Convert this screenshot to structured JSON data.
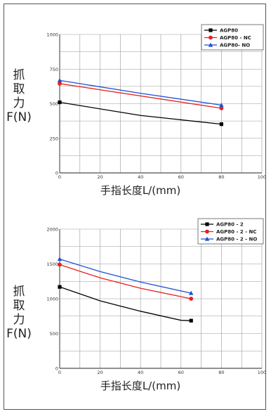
{
  "chart_data": [
    {
      "type": "line",
      "title": "",
      "xlabel": "手指长度L/(mm)",
      "ylabel_lines": [
        "抓",
        "取",
        "力",
        "F(N)"
      ],
      "xlim": [
        0,
        100
      ],
      "ylim": [
        0,
        1000
      ],
      "xticks": [
        "0",
        "20",
        "40",
        "60",
        "80",
        "100"
      ],
      "yticks": [
        "0",
        "250",
        "500",
        "750",
        "1000"
      ],
      "grid": true,
      "legend_position": "top-right",
      "series": [
        {
          "name": "AGP80",
          "color": "#000000",
          "marker": "square",
          "x": [
            0,
            40,
            80
          ],
          "y": [
            510,
            415,
            352
          ]
        },
        {
          "name": "AGP80 - NC",
          "color": "#e8201c",
          "marker": "circle",
          "x": [
            0,
            80
          ],
          "y": [
            645,
            467
          ]
        },
        {
          "name": "AGP80- NO",
          "color": "#1f4fd6",
          "marker": "triangle",
          "x": [
            0,
            40,
            80
          ],
          "y": [
            668,
            575,
            490
          ]
        }
      ]
    },
    {
      "type": "line",
      "title": "",
      "xlabel": "手指长度L/(mm)",
      "ylabel_lines": [
        "抓",
        "取",
        "力",
        "F(N)"
      ],
      "xlim": [
        0,
        100
      ],
      "ylim": [
        0,
        2000
      ],
      "xticks": [
        "0",
        "20",
        "40",
        "60",
        "80",
        "100"
      ],
      "yticks": [
        "0",
        "500",
        "1000",
        "1500",
        "2000"
      ],
      "grid": true,
      "legend_position": "top-right",
      "series": [
        {
          "name": "AGP80 - 2",
          "color": "#000000",
          "marker": "square",
          "x": [
            0,
            20,
            40,
            60,
            65
          ],
          "y": [
            1170,
            970,
            820,
            690,
            685
          ]
        },
        {
          "name": "AGP80 - 2 - NC",
          "color": "#e8201c",
          "marker": "circle",
          "x": [
            0,
            20,
            40,
            65
          ],
          "y": [
            1490,
            1300,
            1150,
            1000
          ]
        },
        {
          "name": "AGP80 - 2 - NO",
          "color": "#1f4fd6",
          "marker": "triangle",
          "x": [
            0,
            20,
            40,
            65
          ],
          "y": [
            1570,
            1390,
            1240,
            1080
          ]
        }
      ]
    }
  ]
}
